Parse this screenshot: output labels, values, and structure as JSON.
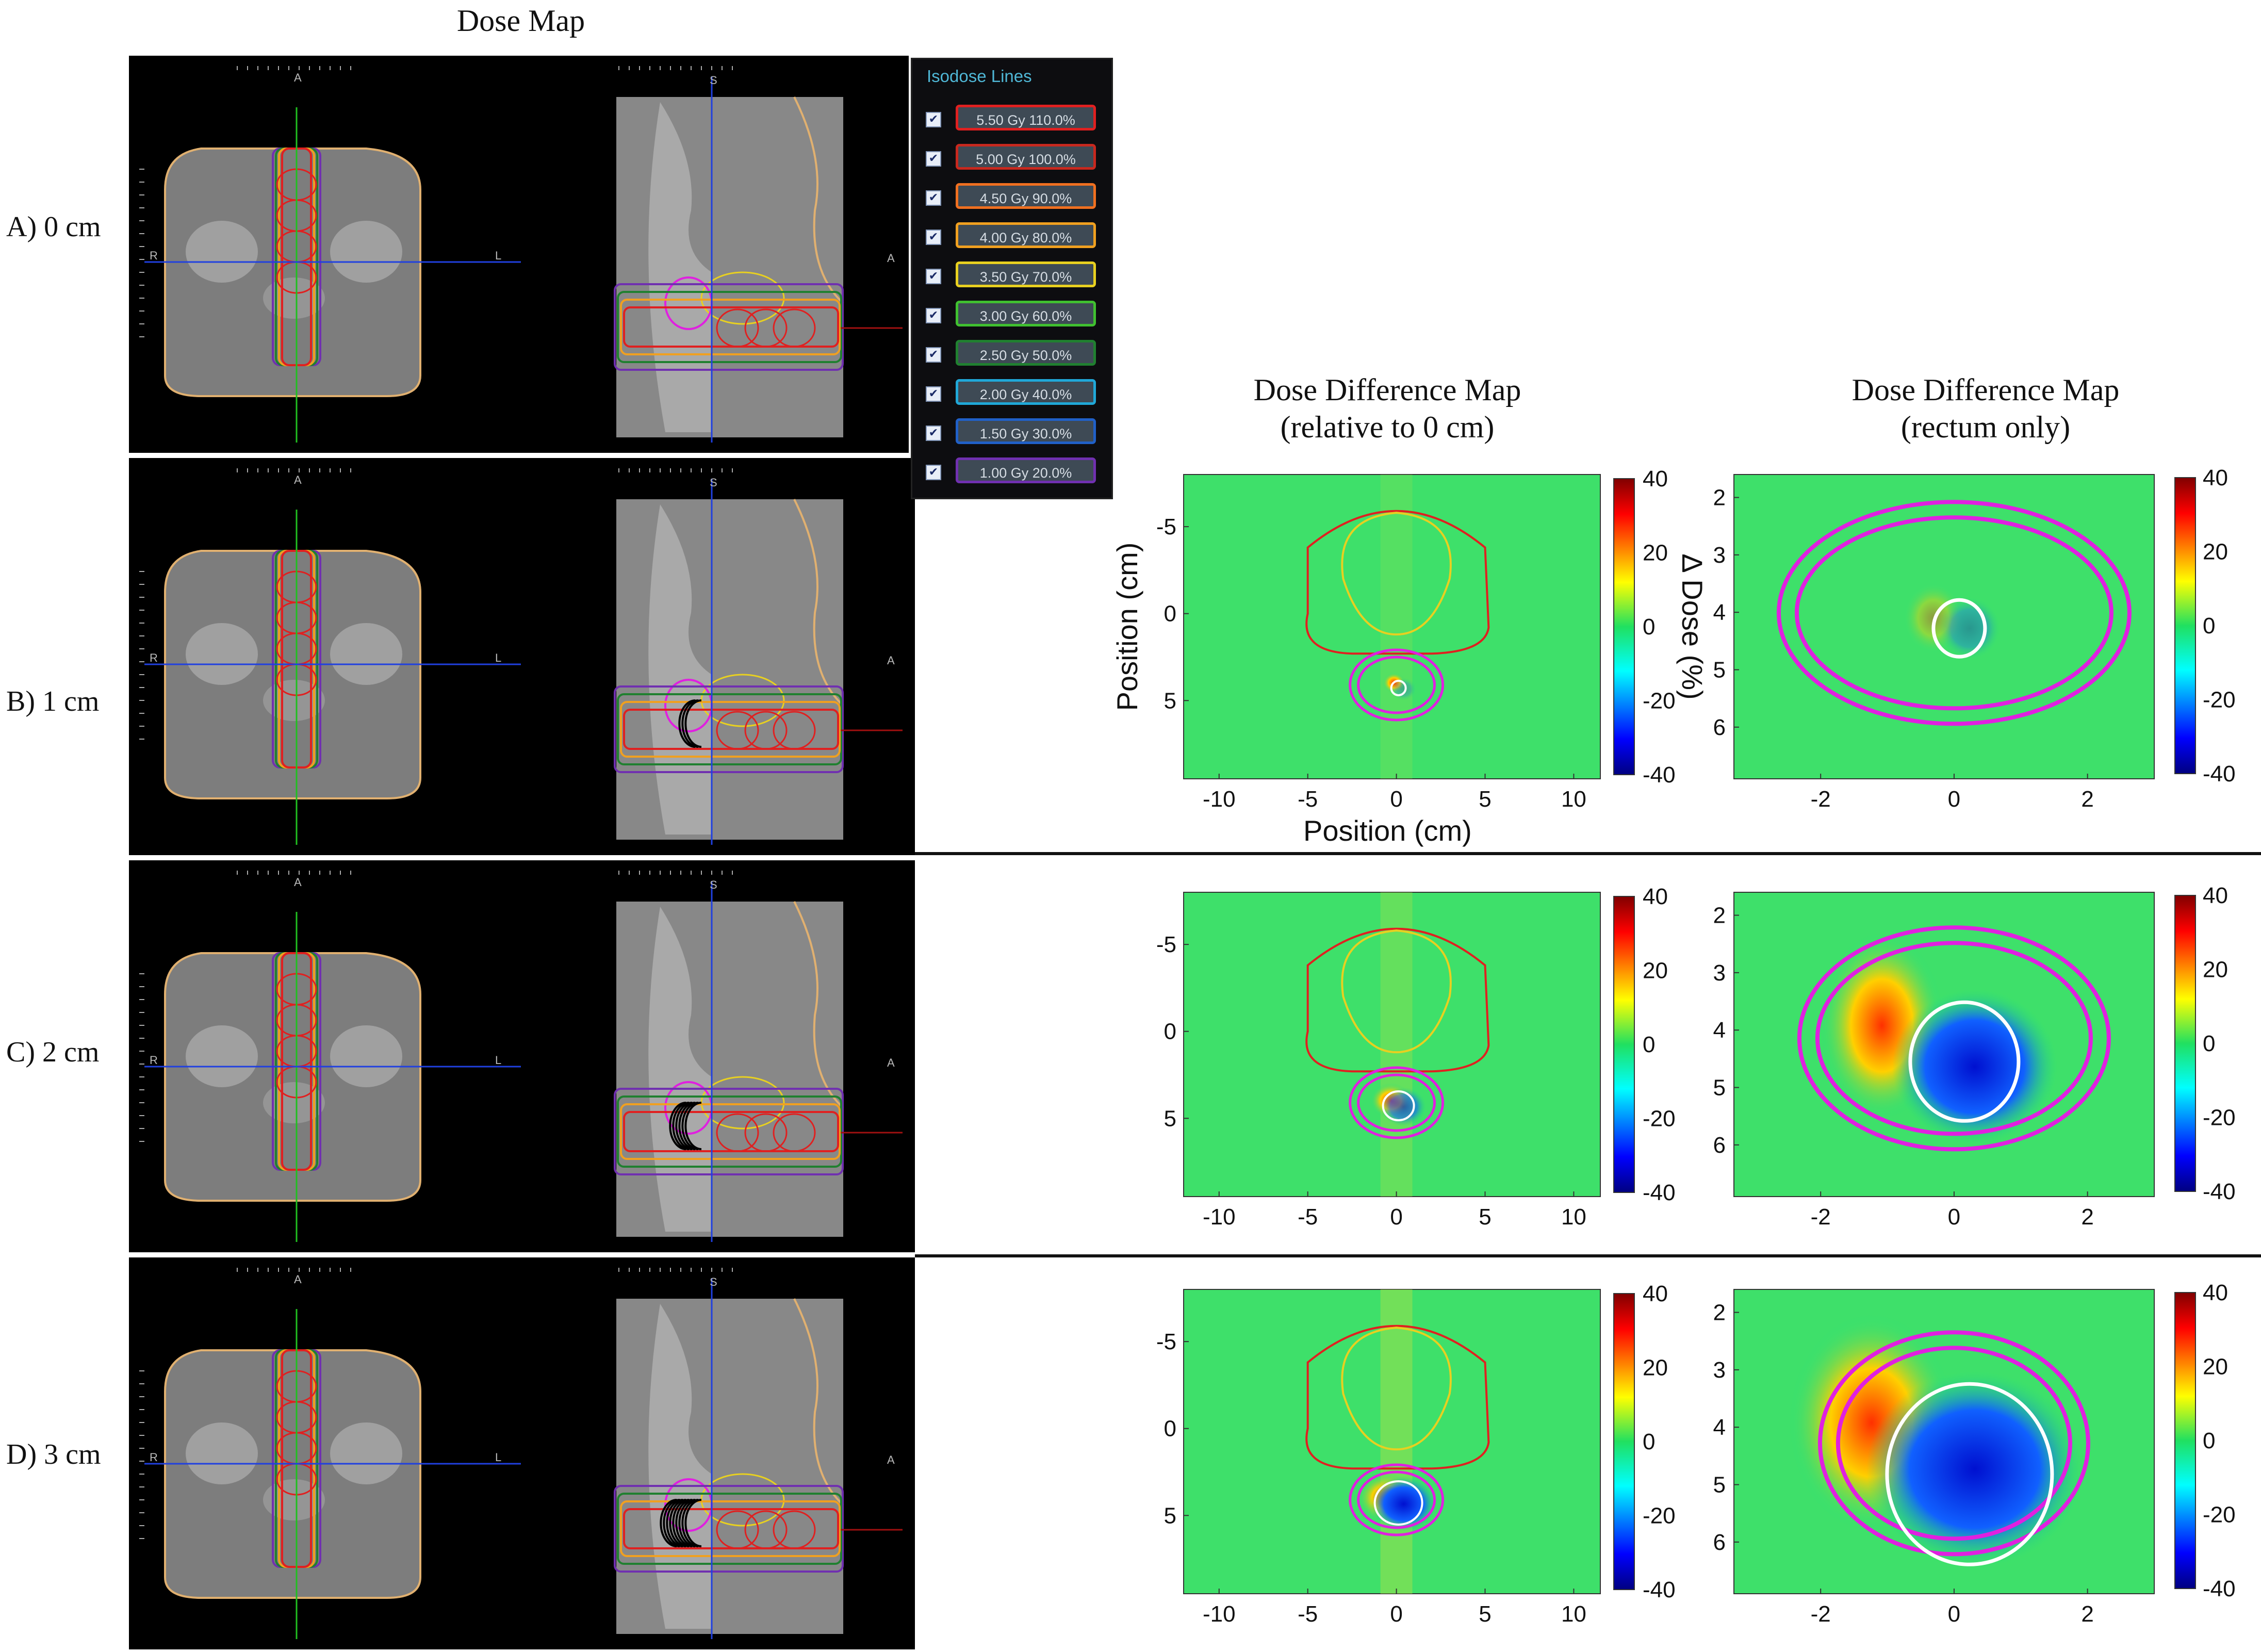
{
  "titles": {
    "dose_map": "Dose Map",
    "diff_line1": "Dose Difference Map",
    "diff_line2": "(relative to 0 cm)",
    "rect_line1": "Dose Difference Map",
    "rect_line2": "(rectum only)"
  },
  "rows": [
    {
      "label": "A) 0 cm"
    },
    {
      "label": "B) 1 cm"
    },
    {
      "label": "C) 2 cm"
    },
    {
      "label": "D) 3 cm"
    }
  ],
  "legend": {
    "title": "Isodose Lines",
    "items": [
      {
        "label": "5.50 Gy  110.0%",
        "color": "#e02020"
      },
      {
        "label": "5.00 Gy  100.0%",
        "color": "#c8281e"
      },
      {
        "label": "4.50 Gy  90.0%",
        "color": "#f07020"
      },
      {
        "label": "4.00 Gy  80.0%",
        "color": "#f0a020"
      },
      {
        "label": "3.50 Gy  70.0%",
        "color": "#e8d020"
      },
      {
        "label": "3.00 Gy  60.0%",
        "color": "#40c030"
      },
      {
        "label": "2.50 Gy  50.0%",
        "color": "#208030"
      },
      {
        "label": "2.00 Gy  40.0%",
        "color": "#20a8d8"
      },
      {
        "label": "1.50 Gy  30.0%",
        "color": "#2060c8"
      },
      {
        "label": "1.00 Gy  20.0%",
        "color": "#7030b0"
      }
    ]
  },
  "view_markers": {
    "anterior": "A",
    "superior": "S",
    "right": "R",
    "left": "L"
  },
  "diff_axes": {
    "xlabel": "Position (cm)",
    "ylabel": "Position (cm)",
    "x_ticks": [
      "-10",
      "-5",
      "0",
      "5",
      "10"
    ],
    "y_ticks": [
      "-5",
      "0",
      "5"
    ]
  },
  "rect_axes": {
    "x_ticks": [
      "-2",
      "0",
      "2"
    ],
    "y_ticks": [
      "2",
      "3",
      "4",
      "5",
      "6"
    ]
  },
  "colorbar": {
    "label": "Δ Dose (%)",
    "ticks": [
      "40",
      "20",
      "0",
      "-20",
      "-40"
    ]
  },
  "colors": {
    "body_outline": "#e0b070",
    "rectum_contour": "#e020e0",
    "bladder_contour": "#e02020",
    "prostate_contour": "#e8d020"
  }
}
